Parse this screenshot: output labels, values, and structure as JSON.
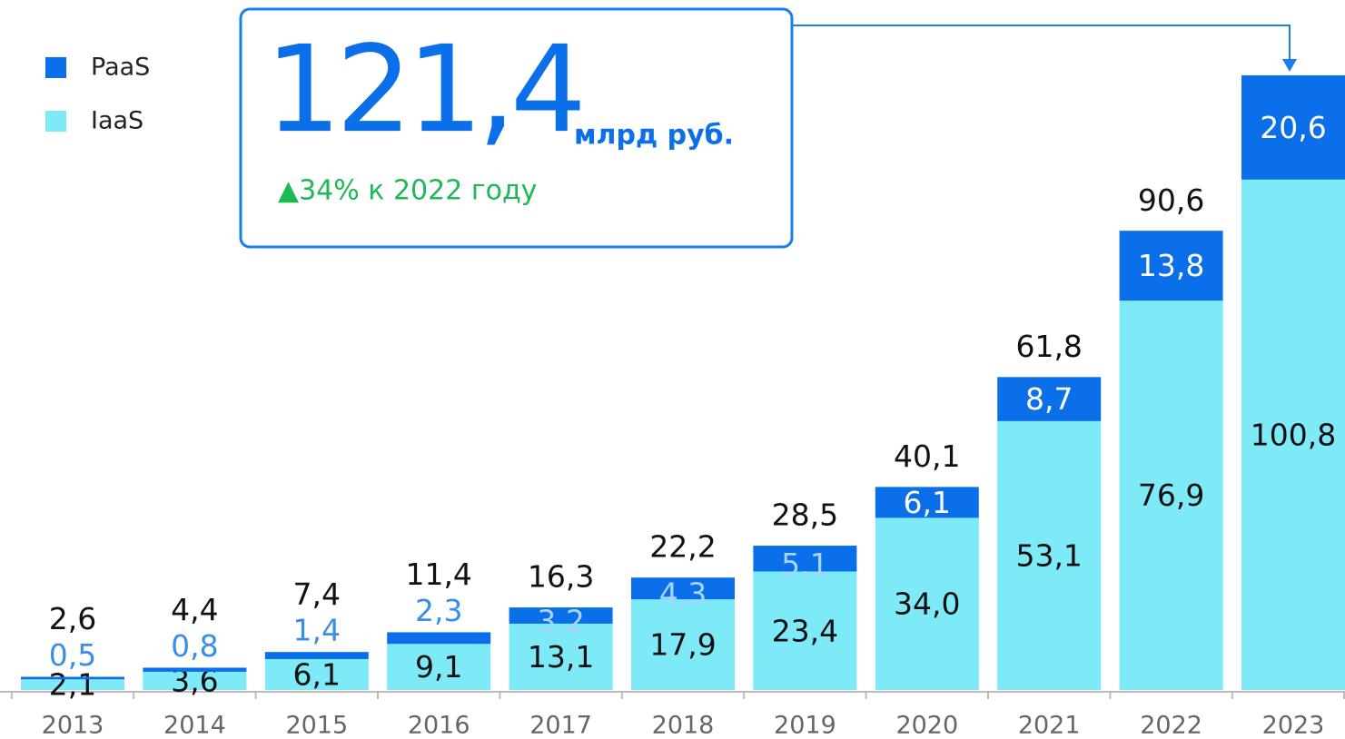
{
  "chart_data": {
    "type": "stacked_bar",
    "categories": [
      "2013",
      "2014",
      "2015",
      "2016",
      "2017",
      "2018",
      "2019",
      "2020",
      "2021",
      "2022",
      "2023"
    ],
    "series": [
      {
        "name": "IaaS",
        "color": "#7eeaf7",
        "values": [
          2.1,
          3.6,
          6.1,
          9.1,
          13.1,
          17.9,
          23.4,
          34.0,
          53.1,
          76.9,
          100.8
        ],
        "value_labels": [
          "2,1",
          "3,6",
          "6,1",
          "9,1",
          "13,1",
          "17,9",
          "23,4",
          "34,0",
          "53,1",
          "76,9",
          "100,8"
        ]
      },
      {
        "name": "PaaS",
        "color": "#0a6fe8",
        "values": [
          0.5,
          0.8,
          1.4,
          2.3,
          3.2,
          4.3,
          5.1,
          6.1,
          8.7,
          13.8,
          20.6
        ],
        "value_labels": [
          "0,5",
          "0,8",
          "1,4",
          "2,3",
          "3,2",
          "4,3",
          "5,1",
          "6,1",
          "8,7",
          "13,8",
          "20,6"
        ]
      }
    ],
    "totals": [
      2.6,
      4.4,
      7.4,
      11.4,
      16.3,
      22.2,
      28.5,
      40.1,
      61.8,
      90.6
    ],
    "total_labels": [
      "2,6",
      "4,4",
      "7,4",
      "11,4",
      "16,3",
      "22,2",
      "28,5",
      "40,1",
      "61,8",
      "90,6"
    ],
    "callout": {
      "value": 121.4,
      "label": "121,4",
      "unit": "млрд руб.",
      "change": "▲34% к 2022 году"
    },
    "ylim": [
      0,
      130
    ]
  }
}
